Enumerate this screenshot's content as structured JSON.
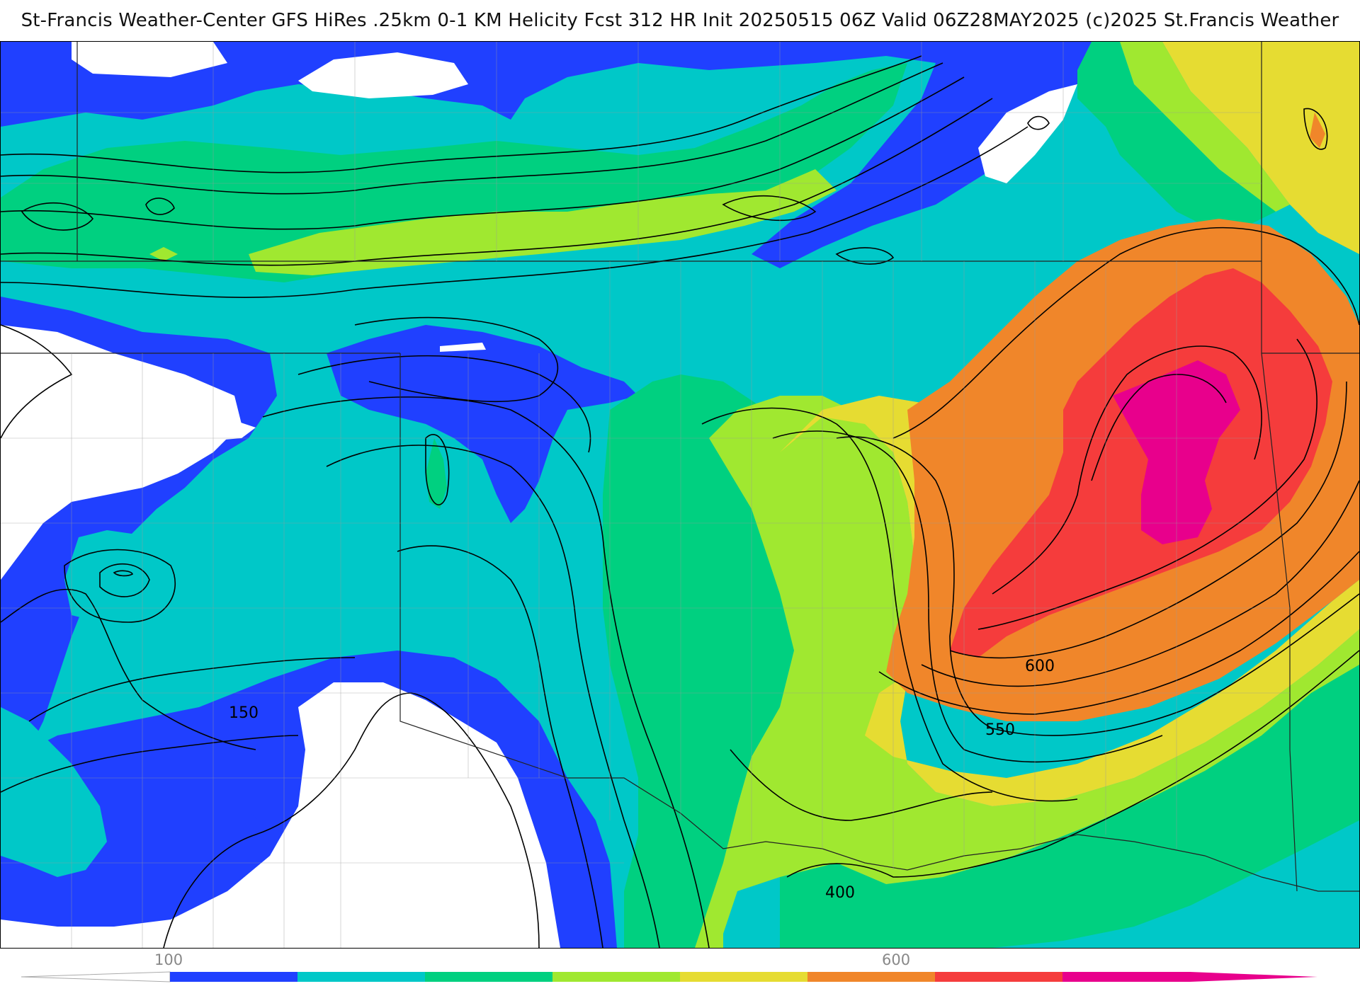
{
  "title": "St-Francis Weather-Center GFS HiRes .25km 0-1 KM Helicity Fcst 312 HR Init 20250515 06Z  Valid 06Z28MAY2025    (c)2025 St.Francis Weather",
  "contour_labels": [
    {
      "id": "label-150",
      "text": "150"
    },
    {
      "id": "label-400",
      "text": "400"
    },
    {
      "id": "label-550",
      "text": "550"
    },
    {
      "id": "label-600",
      "text": "600"
    }
  ],
  "colorbar": {
    "tick_labels": [
      "100",
      "600"
    ],
    "bins": [
      {
        "range": "100-150",
        "color": "#2040ff"
      },
      {
        "range": "150-200",
        "color": "#00c8c8"
      },
      {
        "range": "200-250",
        "color": "#00d080"
      },
      {
        "range": "250-300",
        "color": "#a0e830"
      },
      {
        "range": "300-350",
        "color": "#e6dc32"
      },
      {
        "range": "350-400",
        "color": "#f0862a"
      },
      {
        "range": "400-450",
        "color": "#f53c3c"
      },
      {
        "range": "450-500",
        "color": "#e8008c"
      }
    ]
  },
  "colors": {
    "white": "#ffffff",
    "blue": "#2040ff",
    "cyan": "#00c8c8",
    "green": "#00d080",
    "lime": "#a0e830",
    "yellow": "#e6dc32",
    "orange": "#f0862a",
    "red": "#f53c3c",
    "magenta": "#e8008c"
  }
}
